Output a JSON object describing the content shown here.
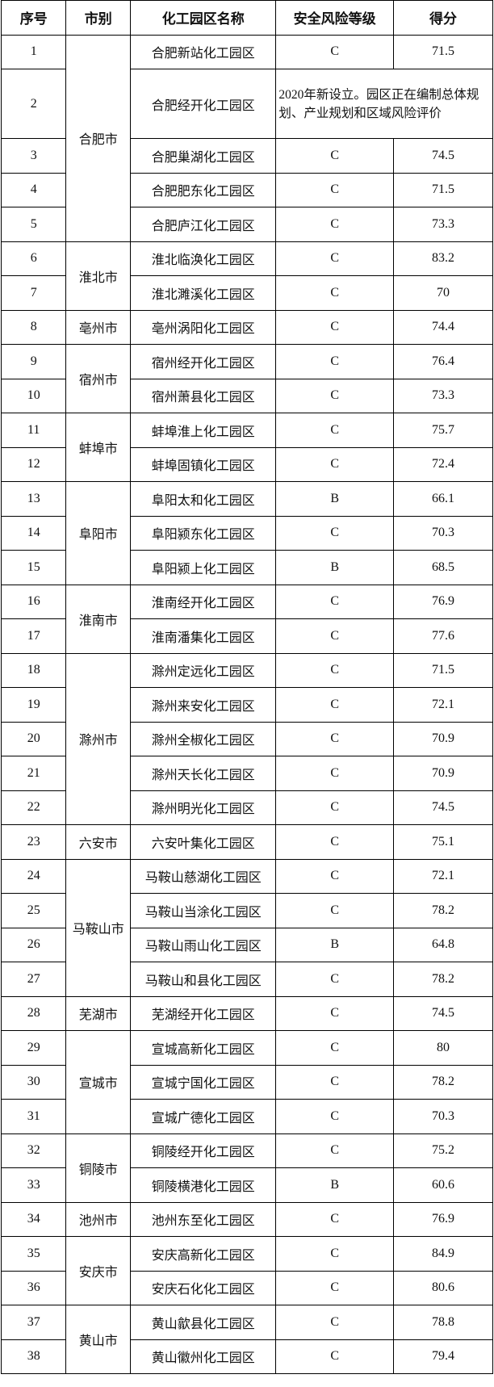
{
  "headers": [
    "序号",
    "市别",
    "化工园区名称",
    "安全风险等级",
    "得分"
  ],
  "groups": [
    {
      "city": "合肥市",
      "rows": [
        {
          "no": "1",
          "name": "合肥新站化工园区",
          "level": "C",
          "score": "71.5"
        },
        {
          "no": "2",
          "name": "合肥经开化工园区",
          "note": "2020年新设立。园区正在编制总体规划、产业规划和区域风险评价"
        },
        {
          "no": "3",
          "name": "合肥巢湖化工园区",
          "level": "C",
          "score": "74.5"
        },
        {
          "no": "4",
          "name": "合肥肥东化工园区",
          "level": "C",
          "score": "71.5"
        },
        {
          "no": "5",
          "name": "合肥庐江化工园区",
          "level": "C",
          "score": "73.3"
        }
      ]
    },
    {
      "city": "淮北市",
      "rows": [
        {
          "no": "6",
          "name": "淮北临涣化工园区",
          "level": "C",
          "score": "83.2"
        },
        {
          "no": "7",
          "name": "淮北濉溪化工园区",
          "level": "C",
          "score": "70"
        }
      ]
    },
    {
      "city": "亳州市",
      "rows": [
        {
          "no": "8",
          "name": "亳州涡阳化工园区",
          "level": "C",
          "score": "74.4"
        }
      ]
    },
    {
      "city": "宿州市",
      "rows": [
        {
          "no": "9",
          "name": "宿州经开化工园区",
          "level": "C",
          "score": "76.4"
        },
        {
          "no": "10",
          "name": "宿州萧县化工园区",
          "level": "C",
          "score": "73.3"
        }
      ]
    },
    {
      "city": "蚌埠市",
      "rows": [
        {
          "no": "11",
          "name": "蚌埠淮上化工园区",
          "level": "C",
          "score": "75.7"
        },
        {
          "no": "12",
          "name": "蚌埠固镇化工园区",
          "level": "C",
          "score": "72.4"
        }
      ]
    },
    {
      "city": "阜阳市",
      "rows": [
        {
          "no": "13",
          "name": "阜阳太和化工园区",
          "level": "B",
          "score": "66.1"
        },
        {
          "no": "14",
          "name": "阜阳颍东化工园区",
          "level": "C",
          "score": "70.3"
        },
        {
          "no": "15",
          "name": "阜阳颍上化工园区",
          "level": "B",
          "score": "68.5"
        }
      ]
    },
    {
      "city": "淮南市",
      "rows": [
        {
          "no": "16",
          "name": "淮南经开化工园区",
          "level": "C",
          "score": "76.9"
        },
        {
          "no": "17",
          "name": "淮南潘集化工园区",
          "level": "C",
          "score": "77.6"
        }
      ]
    },
    {
      "city": "滁州市",
      "rows": [
        {
          "no": "18",
          "name": "滁州定远化工园区",
          "level": "C",
          "score": "71.5"
        },
        {
          "no": "19",
          "name": "滁州来安化工园区",
          "level": "C",
          "score": "72.1"
        },
        {
          "no": "20",
          "name": "滁州全椒化工园区",
          "level": "C",
          "score": "70.9"
        },
        {
          "no": "21",
          "name": "滁州天长化工园区",
          "level": "C",
          "score": "70.9"
        },
        {
          "no": "22",
          "name": "滁州明光化工园区",
          "level": "C",
          "score": "74.5"
        }
      ]
    },
    {
      "city": "六安市",
      "rows": [
        {
          "no": "23",
          "name": "六安叶集化工园区",
          "level": "C",
          "score": "75.1"
        }
      ]
    },
    {
      "city": "马鞍山市",
      "rows": [
        {
          "no": "24",
          "name": "马鞍山慈湖化工园区",
          "level": "C",
          "score": "72.1"
        },
        {
          "no": "25",
          "name": "马鞍山当涂化工园区",
          "level": "C",
          "score": "78.2"
        },
        {
          "no": "26",
          "name": "马鞍山雨山化工园区",
          "level": "B",
          "score": "64.8"
        },
        {
          "no": "27",
          "name": "马鞍山和县化工园区",
          "level": "C",
          "score": "78.2"
        }
      ]
    },
    {
      "city": "芜湖市",
      "rows": [
        {
          "no": "28",
          "name": "芜湖经开化工园区",
          "level": "C",
          "score": "74.5"
        }
      ]
    },
    {
      "city": "宣城市",
      "rows": [
        {
          "no": "29",
          "name": "宣城高新化工园区",
          "level": "C",
          "score": "80"
        },
        {
          "no": "30",
          "name": "宣城宁国化工园区",
          "level": "C",
          "score": "78.2"
        },
        {
          "no": "31",
          "name": "宣城广德化工园区",
          "level": "C",
          "score": "70.3"
        }
      ]
    },
    {
      "city": "铜陵市",
      "rows": [
        {
          "no": "32",
          "name": "铜陵经开化工园区",
          "level": "C",
          "score": "75.2"
        },
        {
          "no": "33",
          "name": "铜陵横港化工园区",
          "level": "B",
          "score": "60.6"
        }
      ]
    },
    {
      "city": "池州市",
      "rows": [
        {
          "no": "34",
          "name": "池州东至化工园区",
          "level": "C",
          "score": "76.9"
        }
      ]
    },
    {
      "city": "安庆市",
      "rows": [
        {
          "no": "35",
          "name": "安庆高新化工园区",
          "level": "C",
          "score": "84.9"
        },
        {
          "no": "36",
          "name": "安庆石化化工园区",
          "level": "C",
          "score": "80.6"
        }
      ]
    },
    {
      "city": "黄山市",
      "rows": [
        {
          "no": "37",
          "name": "黄山歙县化工园区",
          "level": "C",
          "score": "78.8"
        },
        {
          "no": "38",
          "name": "黄山徽州化工园区",
          "level": "C",
          "score": "79.4"
        }
      ]
    }
  ]
}
